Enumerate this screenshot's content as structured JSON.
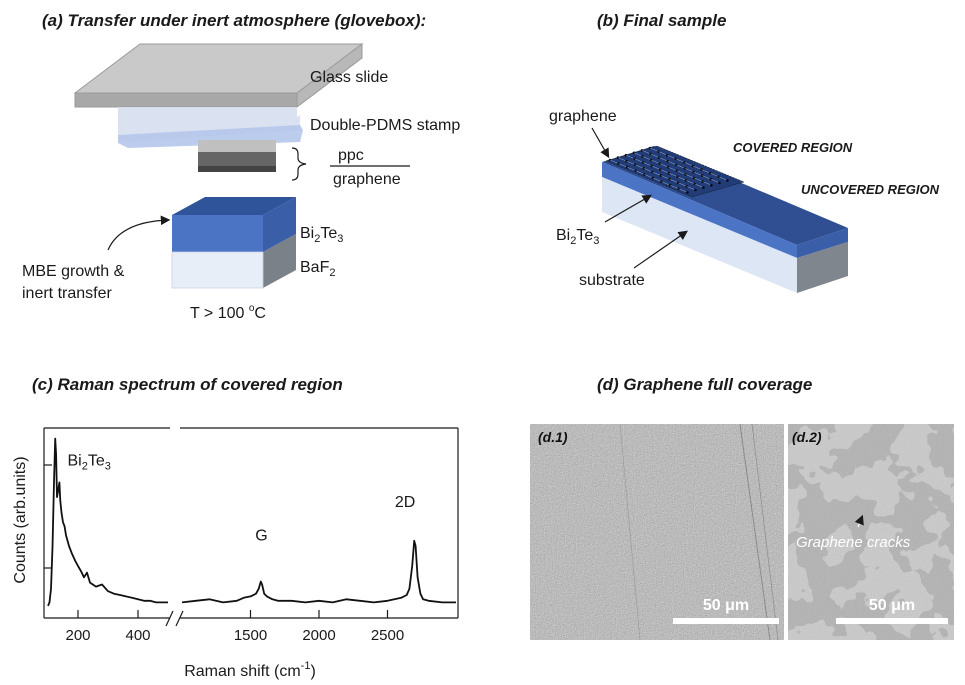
{
  "panel_a": {
    "title": "(a) Transfer under inert atmosphere (glovebox):",
    "glass_slide": "Glass slide",
    "pdms_stamp": "Double-PDMS stamp",
    "ppc": "ppc",
    "graphene": "graphene",
    "bi2te3_base": "Bi",
    "bi2te3_sub1": "2",
    "bi2te3_mid": "Te",
    "bi2te3_sub2": "3",
    "baf2_base": "BaF",
    "baf2_sub": "2",
    "mbe_line1": "MBE growth &",
    "mbe_line2": "inert transfer",
    "temp_base": "T > 100 ",
    "temp_sup": "o",
    "temp_unit": "C"
  },
  "panel_b": {
    "title": "(b) Final sample",
    "graphene": "graphene",
    "covered": "COVERED REGION",
    "uncovered": "UNCOVERED REGION",
    "bi2te3_base": "Bi",
    "bi2te3_sub1": "2",
    "bi2te3_mid": "Te",
    "bi2te3_sub2": "3",
    "substrate": "substrate"
  },
  "panel_c": {
    "title": "(c) Raman spectrum of covered region"
  },
  "panel_d": {
    "title": "(d) Graphene full coverage",
    "d1_label": "(d.1)",
    "d2_label": "(d.2)",
    "cracks": "Graphene cracks",
    "scale1": "50 μm",
    "scale2": "50 μm"
  },
  "chart_data": {
    "type": "line",
    "title": "",
    "xlabel_base": "Raman shift (cm",
    "xlabel_sup": "-1",
    "xlabel_end": ")",
    "ylabel": "Counts (arb.units)",
    "y_scale": "log",
    "broken_x_axis": true,
    "segments": [
      {
        "xlim": [
          100,
          500
        ],
        "ticks": [
          "200",
          "400"
        ],
        "tick_values": [
          200,
          400
        ]
      },
      {
        "xlim": [
          1000,
          3000
        ],
        "ticks": [
          "1500",
          "2000",
          "2500"
        ],
        "tick_values": [
          1500,
          2000,
          2500
        ]
      }
    ],
    "peaks": [
      {
        "label_base": "Bi",
        "label_sub1": "2",
        "label_mid": "Te",
        "label_sub2": "3",
        "x": 125,
        "y": 100
      },
      {
        "label": "G",
        "x": 1580,
        "y": 2
      },
      {
        "label": "2D",
        "x": 2700,
        "y": 6
      }
    ],
    "series": [
      {
        "x": [
          100,
          105,
          110,
          115,
          120,
          124,
          127,
          130,
          134,
          138,
          141,
          145,
          150,
          155,
          160,
          170,
          180,
          190,
          200,
          210,
          220,
          230,
          240,
          260,
          280,
          300,
          320,
          340,
          360,
          380,
          400,
          420,
          440,
          460,
          480,
          500
        ],
        "y": [
          1.0,
          1.1,
          1.6,
          5.0,
          30,
          100,
          65,
          20,
          24,
          30,
          18,
          13,
          10,
          9,
          7,
          5.2,
          4.2,
          3.5,
          3.0,
          2.6,
          2.2,
          2.5,
          1.9,
          1.7,
          1.8,
          1.5,
          1.4,
          1.35,
          1.3,
          1.25,
          1.2,
          1.15,
          1.15,
          1.1,
          1.1,
          1.1
        ]
      },
      {
        "x": [
          1000,
          1100,
          1200,
          1300,
          1400,
          1450,
          1500,
          1540,
          1560,
          1575,
          1585,
          1600,
          1620,
          1660,
          1700,
          1800,
          1900,
          2000,
          2100,
          2200,
          2300,
          2400,
          2500,
          2550,
          2600,
          2640,
          2660,
          2680,
          2695,
          2705,
          2720,
          2740,
          2760,
          2800,
          2900,
          3000
        ],
        "y": [
          1.1,
          1.15,
          1.2,
          1.1,
          1.15,
          1.25,
          1.3,
          1.4,
          1.6,
          1.95,
          1.8,
          1.4,
          1.3,
          1.2,
          1.15,
          1.15,
          1.1,
          1.15,
          1.1,
          1.2,
          1.15,
          1.1,
          1.15,
          1.2,
          1.25,
          1.35,
          1.6,
          3.0,
          6.0,
          5.2,
          2.2,
          1.4,
          1.2,
          1.15,
          1.1,
          1.1
        ]
      }
    ]
  }
}
